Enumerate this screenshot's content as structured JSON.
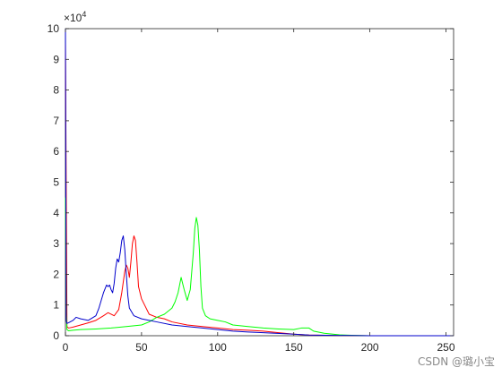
{
  "chart_data": {
    "type": "line",
    "title": "",
    "xlabel": "",
    "ylabel": "",
    "xlim": [
      0,
      255
    ],
    "ylim": [
      0,
      100000
    ],
    "y_exponent_label": "×10",
    "y_exponent_power": "4",
    "x_ticks": [
      0,
      50,
      100,
      150,
      200,
      250
    ],
    "x_tick_labels": [
      "0",
      "50",
      "100",
      "150",
      "200",
      "250"
    ],
    "y_ticks": [
      0,
      10000,
      20000,
      30000,
      40000,
      50000,
      60000,
      70000,
      80000,
      90000,
      100000
    ],
    "y_tick_labels": [
      "0",
      "1",
      "2",
      "3",
      "4",
      "5",
      "6",
      "7",
      "8",
      "9",
      "10"
    ],
    "grid": false,
    "legend": "none",
    "series": [
      {
        "color": "#ff0000",
        "x": [
          0,
          1,
          2,
          5,
          10,
          15,
          20,
          25,
          28,
          30,
          32,
          35,
          37,
          39,
          40,
          41,
          42,
          43,
          44,
          45,
          46,
          47,
          48,
          50,
          52,
          55,
          60,
          65,
          70,
          80,
          90,
          100,
          110,
          120,
          130,
          140,
          150,
          160,
          200,
          255
        ],
        "y": [
          95000,
          3000,
          2500,
          2800,
          3500,
          4200,
          5000,
          6500,
          7500,
          7000,
          6500,
          8500,
          14000,
          21000,
          23000,
          22000,
          19000,
          24000,
          30000,
          32500,
          31000,
          24000,
          16000,
          12000,
          10000,
          7000,
          6000,
          5500,
          4500,
          3500,
          3000,
          2500,
          2000,
          1800,
          1500,
          1000,
          500,
          200,
          0,
          0
        ]
      },
      {
        "color": "#00ff00",
        "x": [
          0,
          0.5,
          1,
          2,
          5,
          10,
          20,
          30,
          40,
          50,
          55,
          60,
          65,
          70,
          72,
          74,
          76,
          78,
          80,
          82,
          84,
          85,
          86,
          87,
          88,
          89,
          90,
          92,
          95,
          100,
          105,
          110,
          120,
          130,
          140,
          150,
          155,
          160,
          163,
          170,
          180,
          190,
          200,
          255
        ],
        "y": [
          45000,
          8000,
          2000,
          1600,
          1800,
          2000,
          2200,
          2500,
          3000,
          3500,
          4500,
          6000,
          7000,
          9000,
          11000,
          14000,
          19000,
          15000,
          11500,
          15000,
          27000,
          35000,
          38500,
          36000,
          28000,
          16000,
          9000,
          6500,
          5500,
          5000,
          4500,
          3500,
          3000,
          2500,
          2200,
          2000,
          2500,
          2500,
          1500,
          800,
          300,
          100,
          0,
          0
        ]
      },
      {
        "color": "#0000cc",
        "x": [
          0,
          0.5,
          1,
          2,
          5,
          7,
          10,
          15,
          20,
          22,
          25,
          27,
          28,
          29,
          30,
          31,
          32,
          33,
          34,
          35,
          36,
          37,
          38,
          39,
          40,
          41,
          42,
          45,
          50,
          55,
          60,
          70,
          80,
          90,
          100,
          110,
          120,
          130,
          150,
          160,
          200,
          255
        ],
        "y": [
          100000,
          5000,
          4000,
          4200,
          5000,
          6000,
          5500,
          5000,
          6500,
          9000,
          14000,
          16500,
          16000,
          16500,
          15000,
          14000,
          17000,
          22000,
          25000,
          24000,
          27000,
          31000,
          32500,
          28000,
          20000,
          13000,
          9000,
          6500,
          5500,
          5000,
          4500,
          3500,
          3000,
          2500,
          2000,
          1500,
          1200,
          1000,
          500,
          200,
          0,
          0
        ]
      }
    ]
  },
  "watermark": "CSDN @璐小宝"
}
